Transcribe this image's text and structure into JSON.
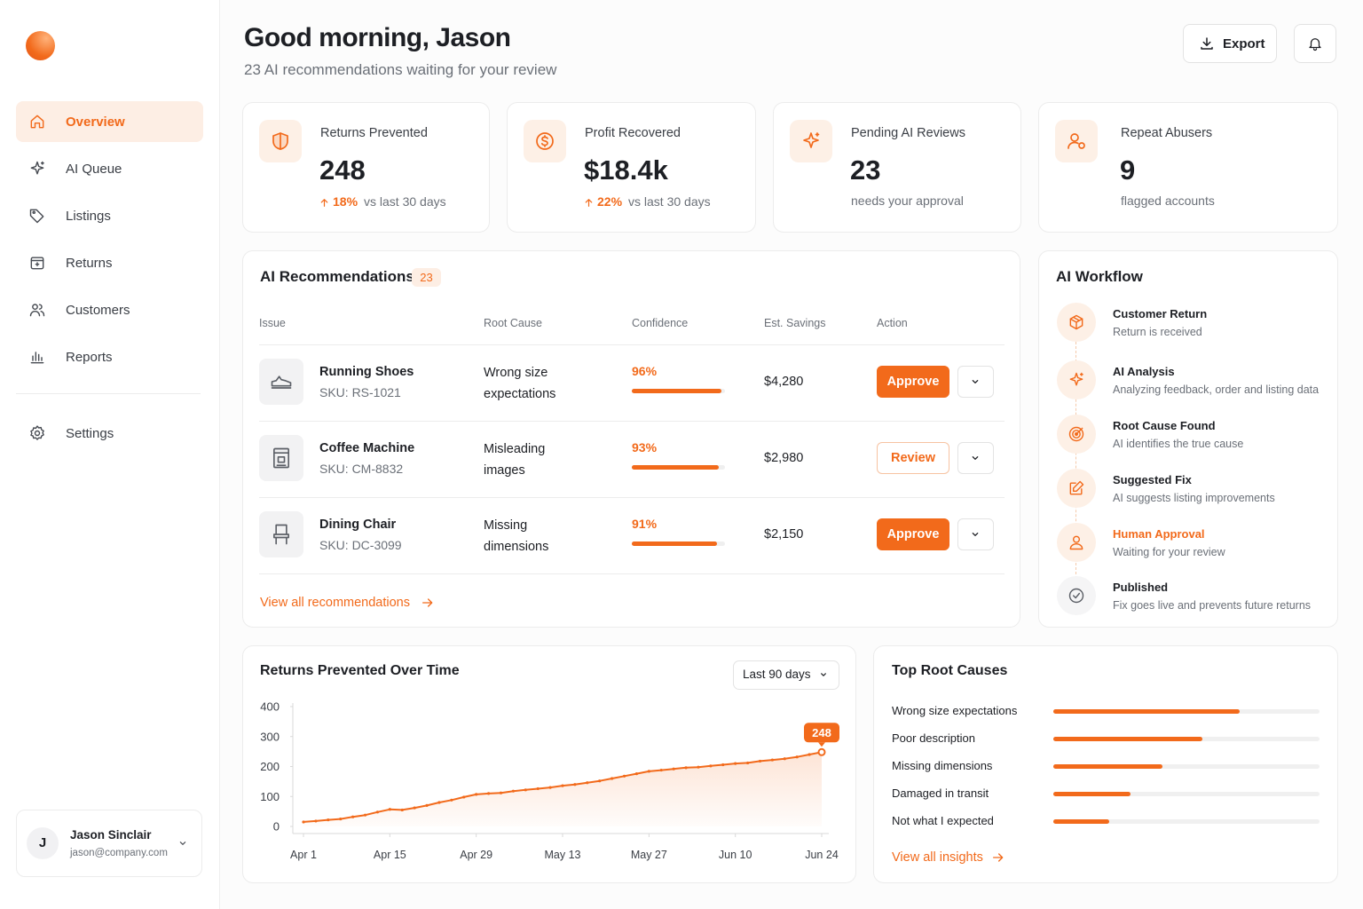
{
  "sidebar": {
    "nav": [
      {
        "label": "Overview",
        "active": true
      },
      {
        "label": "AI Queue"
      },
      {
        "label": "Listings"
      },
      {
        "label": "Returns"
      },
      {
        "label": "Customers"
      },
      {
        "label": "Reports"
      }
    ],
    "settings": "Settings",
    "user": {
      "initial": "J",
      "name": "Jason Sinclair",
      "email": "jason@company.com"
    }
  },
  "header": {
    "title": "Good morning, Jason",
    "subtitle": "23 AI recommendations waiting for your review",
    "export_label": "Export"
  },
  "kpis": [
    {
      "label": "Returns Prevented",
      "value": "248",
      "change": "18%",
      "note": "vs last 30 days"
    },
    {
      "label": "Profit Recovered",
      "value": "$18.4k",
      "change": "22%",
      "note": "vs last 30 days"
    },
    {
      "label": "Pending AI Reviews",
      "value": "23",
      "note": "needs your approval"
    },
    {
      "label": "Repeat Abusers",
      "value": "9",
      "note": "flagged accounts"
    }
  ],
  "recommendations": {
    "title": "AI Recommendations",
    "count": "23",
    "columns": [
      "Issue",
      "Root Cause",
      "Confidence",
      "Est. Savings",
      "Action"
    ],
    "rows": [
      {
        "item": "Running Shoes",
        "sku": "SKU: RS-1021",
        "root_cause": "Wrong size expectations",
        "confidence": 96,
        "confidence_label": "96%",
        "savings": "$4,280",
        "action": "Approve",
        "primary": true
      },
      {
        "item": "Coffee Machine",
        "sku": "SKU: CM-8832",
        "root_cause": "Misleading images",
        "confidence": 93,
        "confidence_label": "93%",
        "savings": "$2,980",
        "action": "Review",
        "primary": false
      },
      {
        "item": "Dining Chair",
        "sku": "SKU: DC-3099",
        "root_cause": "Missing dimensions",
        "confidence": 91,
        "confidence_label": "91%",
        "savings": "$2,150",
        "action": "Approve",
        "primary": true
      }
    ],
    "link": "View all recommendations"
  },
  "workflow": {
    "title": "AI Workflow",
    "steps": [
      {
        "title": "Customer Return",
        "desc": "Return is received"
      },
      {
        "title": "AI Analysis",
        "desc": "Analyzing feedback, order and listing data"
      },
      {
        "title": "Root Cause Found",
        "desc": "AI identifies the true cause"
      },
      {
        "title": "Suggested Fix",
        "desc": "AI suggests listing improvements"
      },
      {
        "title": "Human Approval",
        "desc": "Waiting for your review",
        "active": true
      },
      {
        "title": "Published",
        "desc": "Fix goes live and prevents future returns"
      }
    ]
  },
  "returns_chart": {
    "type": "line",
    "title": "Returns Prevented Over Time",
    "range": "Last 90 days",
    "color": "#f26a1b",
    "categories": [
      "Apr 1",
      null,
      null,
      null,
      null,
      null,
      null,
      "Apr 15",
      null,
      null,
      null,
      null,
      null,
      null,
      "Apr 29",
      null,
      null,
      null,
      null,
      null,
      null,
      "May 13",
      null,
      null,
      null,
      null,
      null,
      null,
      "May 27",
      null,
      null,
      null,
      null,
      null,
      null,
      "Jun 10",
      null,
      null,
      null,
      null,
      null,
      null,
      "Jun 24"
    ],
    "values": [
      15,
      18,
      22,
      25,
      32,
      38,
      48,
      57,
      55,
      62,
      70,
      80,
      88,
      98,
      107,
      110,
      112,
      118,
      122,
      126,
      130,
      136,
      140,
      146,
      152,
      160,
      168,
      176,
      184,
      188,
      192,
      196,
      198,
      202,
      206,
      210,
      212,
      218,
      222,
      226,
      232,
      240,
      248
    ],
    "ylim": [
      0,
      400
    ],
    "yticks": [
      0,
      100,
      200,
      300,
      400
    ]
  },
  "root_causes": {
    "type": "bar",
    "title": "Top Root Causes",
    "color": "#f26a1b",
    "categories": [
      "Wrong size expectations",
      "Poor description",
      "Missing dimensions",
      "Damaged in transit",
      "Not what I expected"
    ],
    "values": [
      70,
      56,
      41,
      29,
      21
    ],
    "link": "View all insights"
  }
}
